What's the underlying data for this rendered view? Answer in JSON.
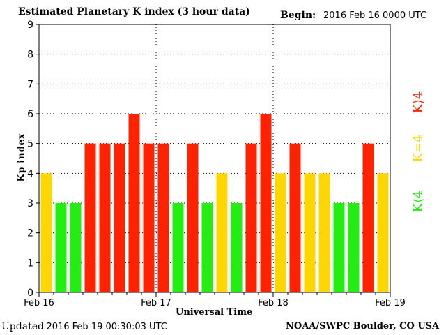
{
  "header": {
    "title": "Estimated Planetary K index (3 hour data)",
    "begin_label": "Begin:",
    "begin_value": "2016 Feb 16 0000 UTC"
  },
  "footer": {
    "updated_label": "Updated",
    "updated_value": "2016 Feb 19 00:30:03 UTC",
    "source": "NOAA/SWPC Boulder, CO USA"
  },
  "legend": {
    "high": "K⟩4",
    "equal": "K=4",
    "low": "K⟨4"
  },
  "colors": {
    "high": "#ff2200",
    "equal": "#ffd700",
    "low": "#22ee11"
  },
  "chart_data": {
    "type": "bar",
    "title": "Estimated Planetary K index (3 hour data)",
    "xlabel": "Universal Time",
    "ylabel": "Kp index",
    "ylim": [
      0,
      9
    ],
    "yticks": [
      "0",
      "1",
      "2",
      "3",
      "4",
      "5",
      "6",
      "7",
      "8",
      "9"
    ],
    "xticks": [
      "Feb 16",
      "Feb 17",
      "Feb 18",
      "Feb 19"
    ],
    "grid": true,
    "values": [
      4,
      3,
      3,
      5,
      5,
      5,
      6,
      5,
      5,
      3,
      5,
      3,
      4,
      3,
      5,
      6,
      4,
      5,
      4,
      4,
      3,
      3,
      5,
      4
    ]
  }
}
